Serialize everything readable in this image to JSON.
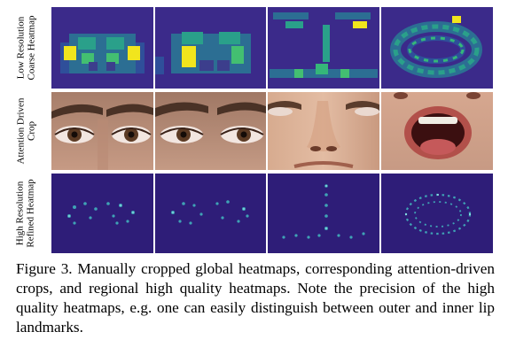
{
  "figure": {
    "rows": [
      {
        "label_line1": "Low Resolution",
        "label_line2": "Coarse Heatmap",
        "kind": "coarse-heatmap"
      },
      {
        "label_line1": "Attention Driven",
        "label_line2": "Crop",
        "kind": "attention-crop"
      },
      {
        "label_line1": "High Resolution",
        "label_line2": "Refined Heatmap",
        "kind": "refined-heatmap"
      }
    ],
    "columns": [
      "eye-left",
      "eye-right",
      "nose",
      "mouth"
    ],
    "colors": {
      "heatmap_bg": "#2a1a6e",
      "heatmap_mid": "#2e6f8e",
      "heatmap_hi": "#35b779",
      "heatmap_peak": "#fde725",
      "skin": "#c9a088"
    }
  },
  "caption": {
    "text": "Figure 3. Manually cropped global heatmaps, corresponding attention-driven crops, and regional high quality heatmaps. Note the precision of the high quality heatmaps, e.g. one can easily distinguish between outer and inner lip landmarks."
  }
}
